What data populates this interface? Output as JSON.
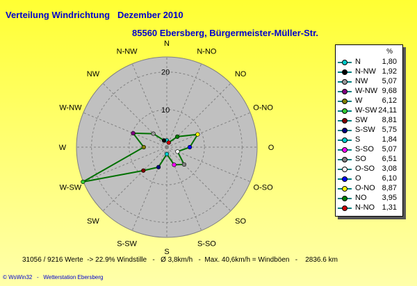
{
  "header": {
    "title": "Verteilung Windrichtung   Dezember 2010",
    "station": "85560 Ebersberg, Bürgermeister-Müller-Str."
  },
  "legend": {
    "unit": "%"
  },
  "chart_data": {
    "type": "radar",
    "title": "Verteilung Windrichtung   Dezember 2010",
    "subtitle": "85560 Ebersberg, Bürgermeister-Müller-Str.",
    "unit": "%",
    "rmax": 24,
    "radial_ticks": [
      10,
      20
    ],
    "directions": [
      "N",
      "N-NO",
      "NO",
      "O-NO",
      "O",
      "O-SO",
      "SO",
      "S-SO",
      "S",
      "S-SW",
      "SW",
      "W-SW",
      "W",
      "W-NW",
      "NW",
      "N-NW"
    ],
    "series_line_color": "#007000",
    "legend_entries": [
      {
        "name": "N",
        "value": "1,80",
        "direction": "N",
        "color": "#00cccc"
      },
      {
        "name": "N-NW",
        "value": "1,92",
        "direction": "N-NW",
        "color": "#000000"
      },
      {
        "name": "NW",
        "value": "5,07",
        "direction": "NW",
        "color": "#999999"
      },
      {
        "name": "W-NW",
        "value": "9,68",
        "direction": "W-NW",
        "color": "#800080"
      },
      {
        "name": "W",
        "value": "6,12",
        "direction": "W",
        "color": "#808000"
      },
      {
        "name": "W-SW",
        "value": "24,11",
        "direction": "W-SW",
        "color": "#33cc33"
      },
      {
        "name": "SW",
        "value": "8,81",
        "direction": "SW",
        "color": "#800000"
      },
      {
        "name": "S-SW",
        "value": "5,75",
        "direction": "S-SW",
        "color": "#000080"
      },
      {
        "name": "S",
        "value": "1,84",
        "direction": "S",
        "color": "#00cccc"
      },
      {
        "name": "S-SO",
        "value": "5,07",
        "direction": "S-SO",
        "color": "#ff00ff"
      },
      {
        "name": "SO",
        "value": "6,51",
        "direction": "SO",
        "color": "#808080"
      },
      {
        "name": "O-SO",
        "value": "3,08",
        "direction": "O-SO",
        "color": "#ffffff"
      },
      {
        "name": "O",
        "value": "6,10",
        "direction": "O",
        "color": "#0000ff"
      },
      {
        "name": "O-NO",
        "value": "8,87",
        "direction": "O-NO",
        "color": "#ffff00"
      },
      {
        "name": "NO",
        "value": "3,95",
        "direction": "NO",
        "color": "#008000"
      },
      {
        "name": "N-NO",
        "value": "1,31",
        "direction": "N-NO",
        "color": "#cc0000"
      }
    ]
  },
  "footer": {
    "stats": "31056 / 9216 Werte  -> 22.9% Windstille   -   Ø 3,8km/h   -  Max. 40,6km/h = Windböen   -    2836.6 km",
    "credit": "© WsWin32   -   Wetterstation Ebersberg"
  }
}
